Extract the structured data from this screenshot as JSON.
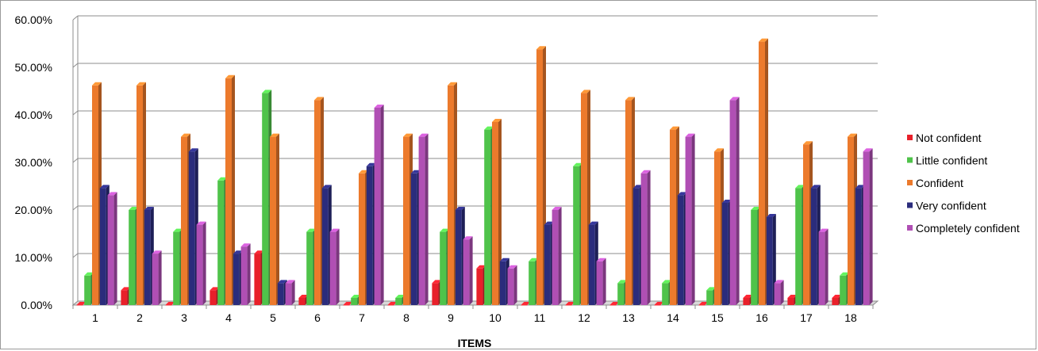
{
  "chart_data": {
    "type": "bar",
    "title": "",
    "xlabel": "ITEMS",
    "ylabel": "",
    "ylim": [
      0,
      60
    ],
    "y_ticks": [
      "0.00%",
      "10.00%",
      "20.00%",
      "30.00%",
      "40.00%",
      "50.00%",
      "60.00%"
    ],
    "categories": [
      "1",
      "2",
      "3",
      "4",
      "5",
      "6",
      "7",
      "8",
      "9",
      "10",
      "11",
      "12",
      "13",
      "14",
      "15",
      "16",
      "17",
      "18"
    ],
    "grid": true,
    "legend_position": "right",
    "series": [
      {
        "name": "Not confident",
        "color": "#e8202a",
        "values": [
          0,
          3.1,
          0,
          3.1,
          10.8,
          1.5,
          0,
          0,
          4.6,
          7.7,
          0,
          0,
          0,
          0,
          0,
          1.5,
          1.5,
          1.5
        ]
      },
      {
        "name": "Little confident",
        "color": "#4fc34a",
        "values": [
          6.2,
          20.0,
          15.4,
          26.2,
          44.6,
          15.4,
          1.5,
          1.5,
          15.4,
          36.9,
          9.2,
          29.2,
          4.6,
          4.6,
          3.1,
          20.0,
          24.6,
          6.2
        ]
      },
      {
        "name": "Confident",
        "color": "#ec7a2c",
        "values": [
          46.2,
          46.2,
          35.4,
          47.7,
          35.4,
          43.1,
          27.7,
          35.4,
          46.2,
          38.5,
          53.8,
          44.6,
          43.1,
          36.9,
          32.3,
          55.4,
          33.8,
          35.4
        ]
      },
      {
        "name": "Very confident",
        "color": "#2b2c7c",
        "values": [
          24.6,
          20.0,
          32.3,
          10.8,
          4.6,
          24.6,
          29.2,
          27.7,
          20.0,
          9.2,
          16.9,
          16.9,
          24.6,
          23.1,
          21.5,
          18.5,
          24.6,
          24.6
        ]
      },
      {
        "name": "Completely confident",
        "color": "#b04fb4",
        "values": [
          23.1,
          10.8,
          16.9,
          12.3,
          4.6,
          15.4,
          41.5,
          35.4,
          13.8,
          7.7,
          20.0,
          9.2,
          27.7,
          35.4,
          43.1,
          4.6,
          15.4,
          32.3
        ]
      }
    ]
  }
}
